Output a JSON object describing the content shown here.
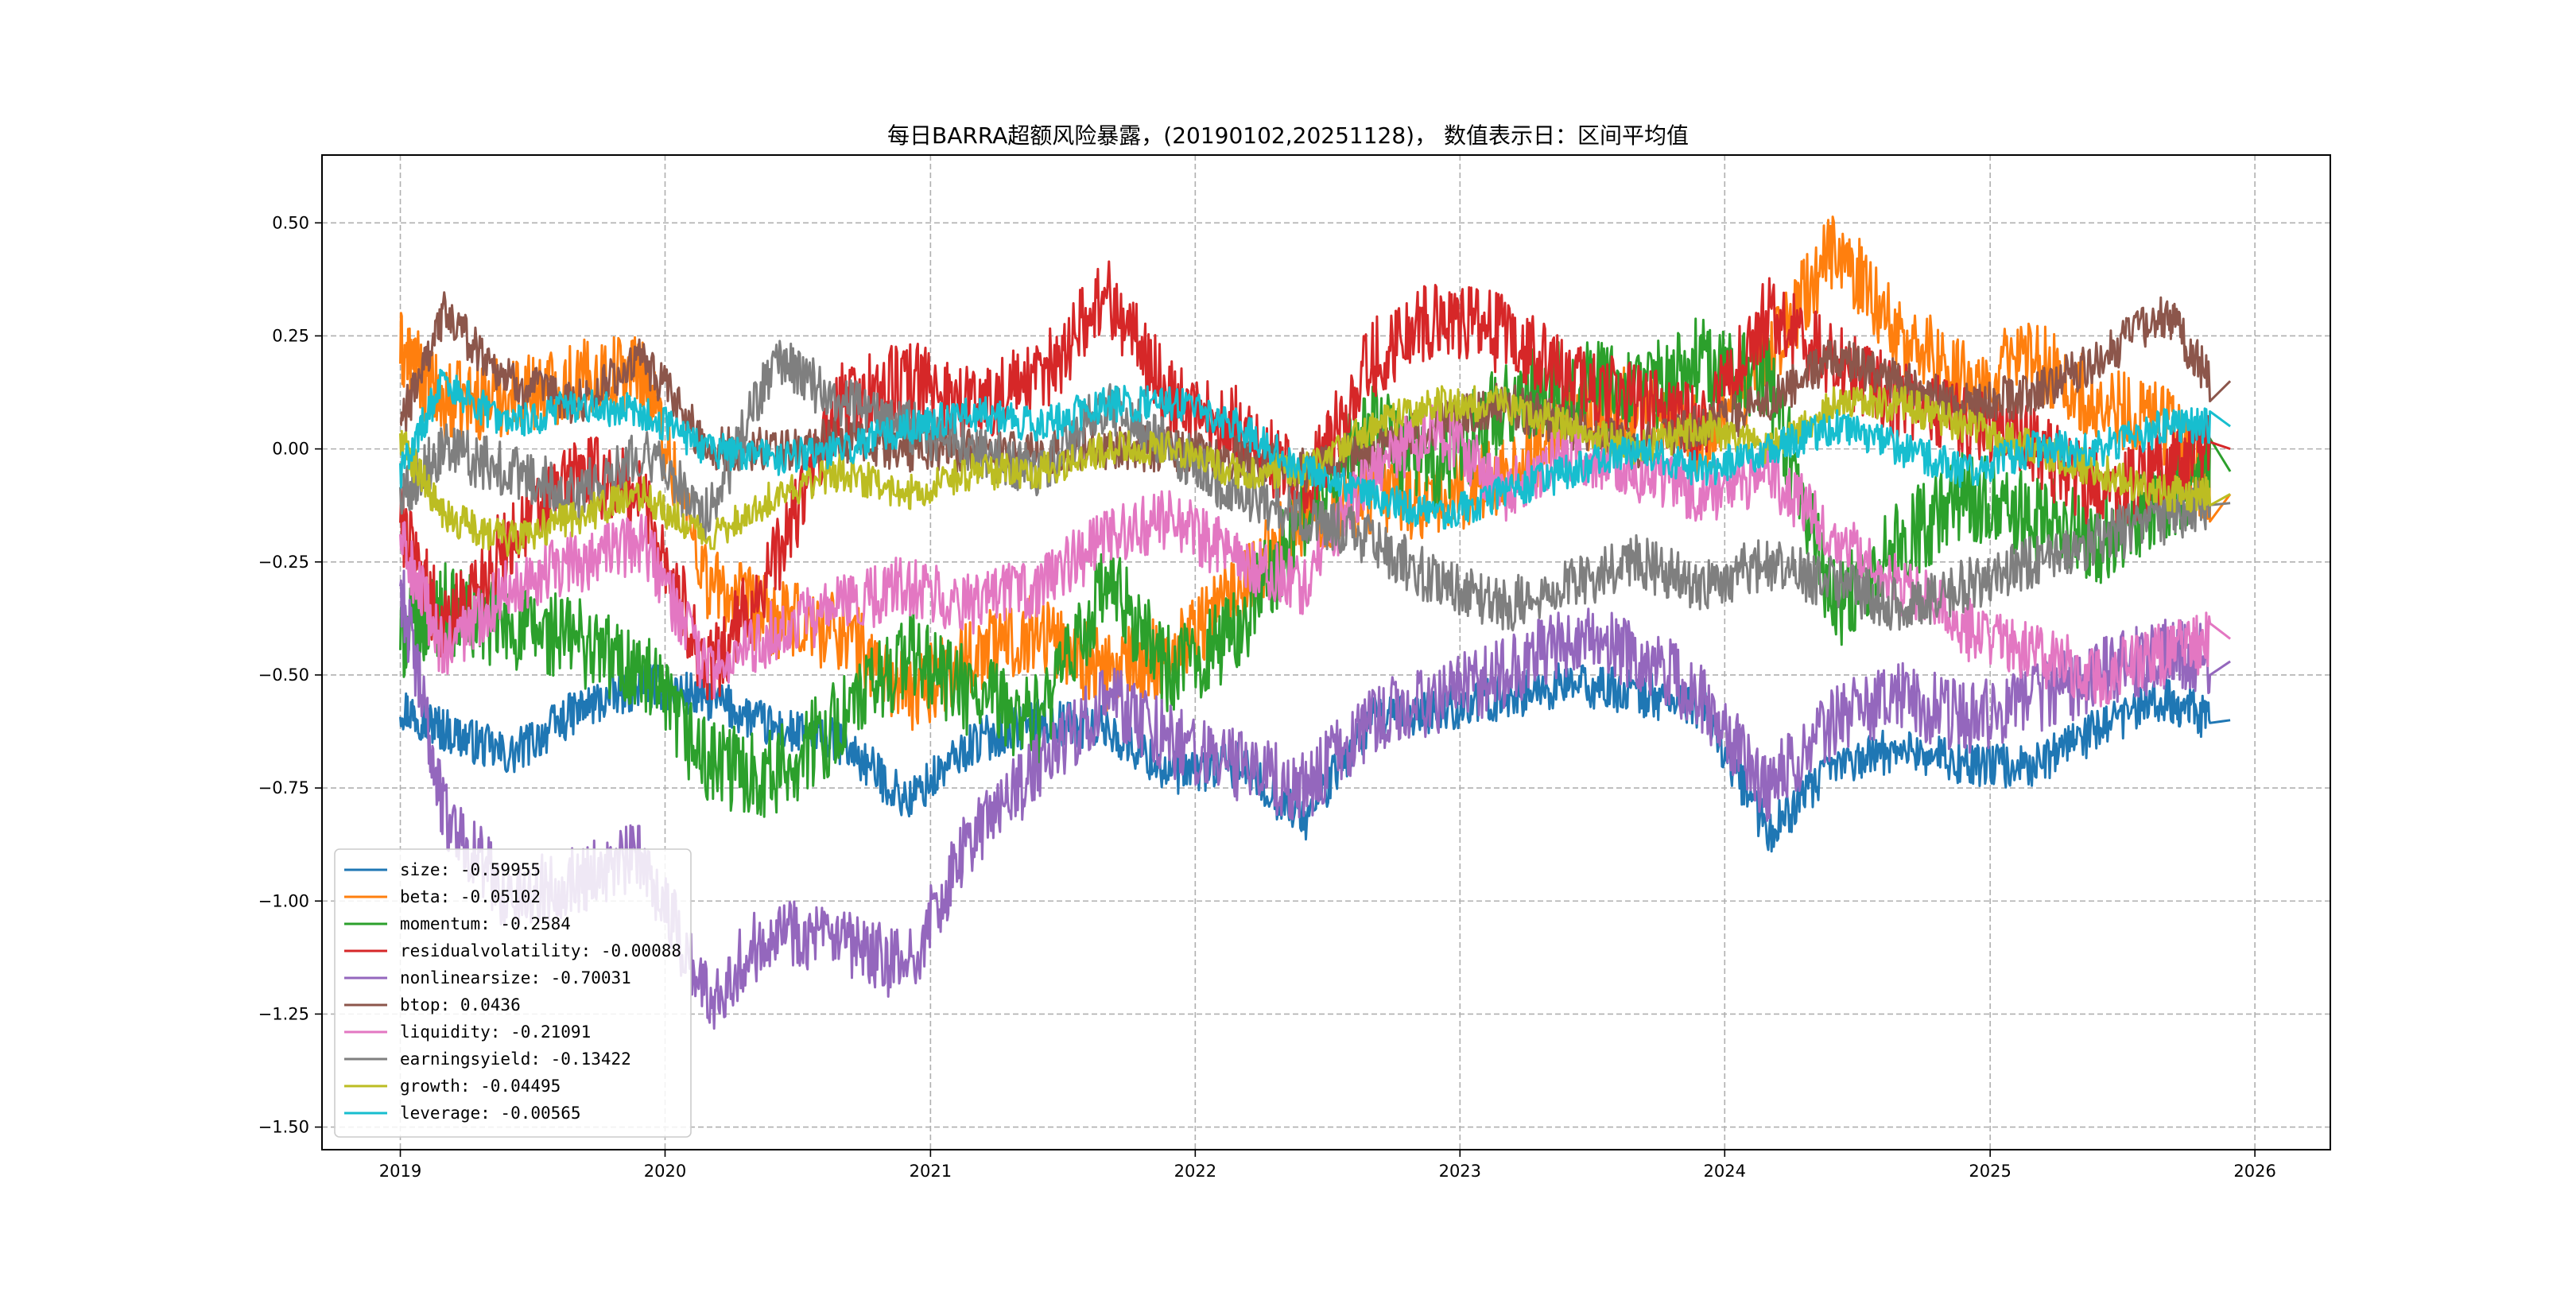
{
  "chart_data": {
    "type": "line",
    "title": "每日BARRA超额风险暴露，(20190102,20251128)， 数值表示日：区间平均值",
    "xlabel": "",
    "ylabel": "",
    "x_range": [
      "2019-01-02",
      "2025-11-28"
    ],
    "xlim": [
      "2018-09-15",
      "2026-04-15"
    ],
    "ylim": [
      -1.55,
      0.65
    ],
    "x_ticks": [
      "2019",
      "2020",
      "2021",
      "2022",
      "2023",
      "2024",
      "2025",
      "2026"
    ],
    "y_ticks": [
      0.5,
      0.25,
      0.0,
      -0.25,
      -0.5,
      -0.75,
      -1.0,
      -1.25,
      -1.5
    ],
    "y_tick_labels": [
      "0.50",
      "0.25",
      "0.00",
      "−0.25",
      "−0.50",
      "−0.75",
      "−1.00",
      "−1.25",
      "−1.50"
    ],
    "grid": true,
    "legend_position": "lower-left",
    "series": [
      {
        "name": "size",
        "legend": "size: -0.59955",
        "color": "#1f77b4",
        "x": [
          "2019-01",
          "2019-03",
          "2019-06",
          "2019-09",
          "2019-12",
          "2020-03",
          "2020-06",
          "2020-09",
          "2020-12",
          "2021-03",
          "2021-06",
          "2021-09",
          "2021-12",
          "2022-03",
          "2022-06",
          "2022-09",
          "2022-12",
          "2023-03",
          "2023-06",
          "2023-09",
          "2023-12",
          "2024-03",
          "2024-06",
          "2024-09",
          "2024-12",
          "2025-03",
          "2025-06",
          "2025-09",
          "2025-11"
        ],
        "values": [
          -0.57,
          -0.62,
          -0.68,
          -0.58,
          -0.52,
          -0.55,
          -0.62,
          -0.65,
          -0.78,
          -0.65,
          -0.6,
          -0.62,
          -0.72,
          -0.7,
          -0.82,
          -0.6,
          -0.58,
          -0.55,
          -0.52,
          -0.54,
          -0.57,
          -0.85,
          -0.7,
          -0.66,
          -0.7,
          -0.7,
          -0.62,
          -0.55,
          -0.6
        ]
      },
      {
        "name": "beta",
        "legend": "beta: -0.05102",
        "color": "#ff7f0e",
        "x": [
          "2019-01",
          "2019-03",
          "2019-06",
          "2019-09",
          "2019-12",
          "2020-03",
          "2020-06",
          "2020-09",
          "2020-12",
          "2021-03",
          "2021-06",
          "2021-09",
          "2021-12",
          "2022-03",
          "2022-06",
          "2022-09",
          "2022-12",
          "2023-03",
          "2023-06",
          "2023-09",
          "2023-12",
          "2024-03",
          "2024-06",
          "2024-09",
          "2024-12",
          "2025-03",
          "2025-06",
          "2025-09",
          "2025-11"
        ],
        "values": [
          0.22,
          0.1,
          0.12,
          0.15,
          0.18,
          -0.3,
          -0.38,
          -0.4,
          -0.55,
          -0.45,
          -0.4,
          -0.5,
          -0.45,
          -0.3,
          -0.15,
          -0.1,
          -0.12,
          -0.05,
          0.05,
          0.1,
          0.02,
          0.2,
          0.45,
          0.25,
          0.15,
          0.2,
          0.1,
          0.05,
          -0.1
        ]
      },
      {
        "name": "momentum",
        "legend": "momentum: -0.2584",
        "color": "#2ca02c",
        "x": [
          "2019-01",
          "2019-03",
          "2019-06",
          "2019-09",
          "2019-12",
          "2020-03",
          "2020-06",
          "2020-09",
          "2020-12",
          "2021-03",
          "2021-06",
          "2021-09",
          "2021-12",
          "2022-03",
          "2022-06",
          "2022-09",
          "2022-12",
          "2023-03",
          "2023-06",
          "2023-09",
          "2023-12",
          "2024-03",
          "2024-06",
          "2024-09",
          "2024-12",
          "2025-03",
          "2025-06",
          "2025-09",
          "2025-11"
        ],
        "values": [
          -0.42,
          -0.35,
          -0.4,
          -0.42,
          -0.5,
          -0.7,
          -0.72,
          -0.6,
          -0.45,
          -0.55,
          -0.6,
          -0.3,
          -0.5,
          -0.4,
          -0.15,
          0.05,
          -0.05,
          0.1,
          0.15,
          0.12,
          0.2,
          0.15,
          -0.35,
          -0.2,
          -0.1,
          -0.15,
          -0.2,
          -0.1,
          -0.05
        ]
      },
      {
        "name": "residualvolatility",
        "legend": "residualvolatility: -0.00088",
        "color": "#d62728",
        "x": [
          "2019-01",
          "2019-03",
          "2019-06",
          "2019-09",
          "2019-12",
          "2020-03",
          "2020-06",
          "2020-09",
          "2020-12",
          "2021-03",
          "2021-06",
          "2021-09",
          "2021-12",
          "2022-03",
          "2022-06",
          "2022-09",
          "2022-12",
          "2023-03",
          "2023-06",
          "2023-09",
          "2023-12",
          "2024-03",
          "2024-06",
          "2024-09",
          "2024-12",
          "2025-03",
          "2025-06",
          "2025-09",
          "2025-11"
        ],
        "values": [
          -0.15,
          -0.4,
          -0.2,
          -0.05,
          -0.1,
          -0.5,
          -0.25,
          0.1,
          0.15,
          0.1,
          0.15,
          0.35,
          0.1,
          0.05,
          -0.1,
          0.2,
          0.3,
          0.25,
          0.15,
          0.1,
          0.05,
          0.3,
          0.2,
          0.1,
          0.05,
          0.0,
          -0.1,
          -0.05,
          0.0
        ]
      },
      {
        "name": "nonlinearsize",
        "legend": "nonlinearsize: -0.70031",
        "color": "#9467bd",
        "x": [
          "2019-01",
          "2019-03",
          "2019-06",
          "2019-09",
          "2019-12",
          "2020-03",
          "2020-06",
          "2020-09",
          "2020-12",
          "2021-03",
          "2021-06",
          "2021-09",
          "2021-12",
          "2022-03",
          "2022-06",
          "2022-09",
          "2022-12",
          "2023-03",
          "2023-06",
          "2023-09",
          "2023-12",
          "2024-03",
          "2024-06",
          "2024-09",
          "2024-12",
          "2025-03",
          "2025-06",
          "2025-09",
          "2025-11"
        ],
        "values": [
          -0.3,
          -0.8,
          -1.0,
          -0.95,
          -0.9,
          -1.22,
          -1.05,
          -1.1,
          -1.15,
          -0.85,
          -0.7,
          -0.55,
          -0.65,
          -0.7,
          -0.75,
          -0.6,
          -0.55,
          -0.5,
          -0.42,
          -0.45,
          -0.55,
          -0.75,
          -0.6,
          -0.55,
          -0.6,
          -0.55,
          -0.5,
          -0.45,
          -0.47
        ]
      },
      {
        "name": "btop",
        "legend": "btop: 0.0436",
        "color": "#8c564b",
        "x": [
          "2019-01",
          "2019-03",
          "2019-06",
          "2019-09",
          "2019-12",
          "2020-03",
          "2020-06",
          "2020-09",
          "2020-12",
          "2021-03",
          "2021-06",
          "2021-09",
          "2021-12",
          "2022-03",
          "2022-06",
          "2022-09",
          "2022-12",
          "2023-03",
          "2023-06",
          "2023-09",
          "2023-12",
          "2024-03",
          "2024-06",
          "2024-09",
          "2024-12",
          "2025-03",
          "2025-06",
          "2025-09",
          "2025-11"
        ],
        "values": [
          0.05,
          0.3,
          0.15,
          0.1,
          0.2,
          0.0,
          0.0,
          0.02,
          0.0,
          0.0,
          -0.01,
          0.0,
          0.0,
          -0.02,
          -0.05,
          0.0,
          0.05,
          0.1,
          0.05,
          0.0,
          0.05,
          0.1,
          0.2,
          0.15,
          0.1,
          0.12,
          0.2,
          0.3,
          0.15
        ]
      },
      {
        "name": "liquidity",
        "legend": "liquidity: -0.21091",
        "color": "#e377c2",
        "x": [
          "2019-01",
          "2019-03",
          "2019-06",
          "2019-09",
          "2019-12",
          "2020-03",
          "2020-06",
          "2020-09",
          "2020-12",
          "2021-03",
          "2021-06",
          "2021-09",
          "2021-12",
          "2022-03",
          "2022-06",
          "2022-09",
          "2022-12",
          "2023-03",
          "2023-06",
          "2023-09",
          "2023-12",
          "2024-03",
          "2024-06",
          "2024-09",
          "2024-12",
          "2025-03",
          "2025-06",
          "2025-09",
          "2025-11"
        ],
        "values": [
          -0.2,
          -0.45,
          -0.3,
          -0.25,
          -0.2,
          -0.5,
          -0.4,
          -0.35,
          -0.3,
          -0.35,
          -0.3,
          -0.2,
          -0.15,
          -0.25,
          -0.3,
          -0.05,
          0.05,
          -0.1,
          0.0,
          -0.05,
          -0.1,
          -0.05,
          -0.2,
          -0.3,
          -0.4,
          -0.45,
          -0.5,
          -0.45,
          -0.42
        ]
      },
      {
        "name": "earningsyield",
        "legend": "earningsyield: -0.13422",
        "color": "#7f7f7f",
        "x": [
          "2019-01",
          "2019-03",
          "2019-06",
          "2019-09",
          "2019-12",
          "2020-03",
          "2020-06",
          "2020-09",
          "2020-12",
          "2021-03",
          "2021-06",
          "2021-09",
          "2021-12",
          "2022-03",
          "2022-06",
          "2022-09",
          "2022-12",
          "2023-03",
          "2023-06",
          "2023-09",
          "2023-12",
          "2024-03",
          "2024-06",
          "2024-09",
          "2024-12",
          "2025-03",
          "2025-06",
          "2025-09",
          "2025-11"
        ],
        "values": [
          -0.1,
          0.0,
          -0.05,
          -0.1,
          0.0,
          -0.15,
          0.2,
          0.1,
          0.05,
          0.0,
          -0.05,
          0.1,
          0.0,
          -0.1,
          -0.15,
          -0.2,
          -0.3,
          -0.35,
          -0.3,
          -0.25,
          -0.3,
          -0.25,
          -0.3,
          -0.35,
          -0.3,
          -0.25,
          -0.2,
          -0.15,
          -0.12
        ]
      },
      {
        "name": "growth",
        "legend": "growth: -0.04495",
        "color": "#bcbd22",
        "x": [
          "2019-01",
          "2019-03",
          "2019-06",
          "2019-09",
          "2019-12",
          "2020-03",
          "2020-06",
          "2020-09",
          "2020-12",
          "2021-03",
          "2021-06",
          "2021-09",
          "2021-12",
          "2022-03",
          "2022-06",
          "2022-09",
          "2022-12",
          "2023-03",
          "2023-06",
          "2023-09",
          "2023-12",
          "2024-03",
          "2024-06",
          "2024-09",
          "2024-12",
          "2025-03",
          "2025-06",
          "2025-09",
          "2025-11"
        ],
        "values": [
          0.02,
          -0.15,
          -0.2,
          -0.15,
          -0.1,
          -0.2,
          -0.1,
          -0.05,
          -0.1,
          -0.05,
          -0.05,
          0.0,
          0.0,
          -0.05,
          -0.05,
          0.05,
          0.1,
          0.1,
          0.05,
          0.0,
          0.05,
          0.0,
          0.1,
          0.1,
          0.05,
          0.0,
          -0.05,
          -0.1,
          -0.1
        ]
      },
      {
        "name": "leverage",
        "legend": "leverage: -0.00565",
        "color": "#17becf",
        "x": [
          "2019-01",
          "2019-03",
          "2019-06",
          "2019-09",
          "2019-12",
          "2020-03",
          "2020-06",
          "2020-09",
          "2020-12",
          "2021-03",
          "2021-06",
          "2021-09",
          "2021-12",
          "2022-03",
          "2022-06",
          "2022-09",
          "2022-12",
          "2023-03",
          "2023-06",
          "2023-09",
          "2023-12",
          "2024-03",
          "2024-06",
          "2024-09",
          "2024-12",
          "2025-03",
          "2025-06",
          "2025-09",
          "2025-11"
        ],
        "values": [
          -0.05,
          0.15,
          0.05,
          0.1,
          0.08,
          0.0,
          -0.02,
          0.0,
          0.05,
          0.08,
          0.05,
          0.1,
          0.1,
          0.05,
          -0.05,
          -0.1,
          -0.15,
          -0.1,
          -0.05,
          0.0,
          -0.05,
          0.0,
          0.05,
          0.0,
          -0.05,
          0.0,
          0.0,
          0.05,
          0.05
        ]
      }
    ]
  }
}
